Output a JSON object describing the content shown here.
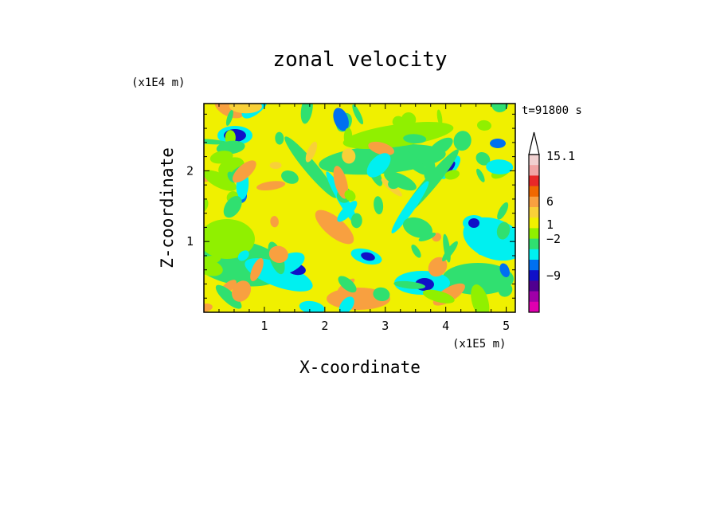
{
  "chart_data": {
    "type": "heatmap",
    "title": "zonal velocity",
    "xlabel": "X-coordinate",
    "ylabel": "Z-coordinate",
    "x_scale_label": "(x1E5 m)",
    "y_scale_label": "(x1E4 m)",
    "time_label": "t=91800 s",
    "xlim": [
      0,
      5.15
    ],
    "ylim": [
      0,
      2.95
    ],
    "x_ticks": [
      "1",
      "2",
      "3",
      "4",
      "5"
    ],
    "y_ticks": [
      "1",
      "2"
    ],
    "colorbar": {
      "labels": [
        "15.1",
        "6",
        "1",
        "−2",
        "−9"
      ],
      "colors": [
        "#f0d0d0",
        "#f0a4a4",
        "#e82828",
        "#f06800",
        "#f8a040",
        "#f8d038",
        "#f0f000",
        "#90f000",
        "#30e070",
        "#00f0f0",
        "#0070f0",
        "#1010c8",
        "#500090",
        "#a000a8",
        "#e000b0"
      ]
    }
  }
}
